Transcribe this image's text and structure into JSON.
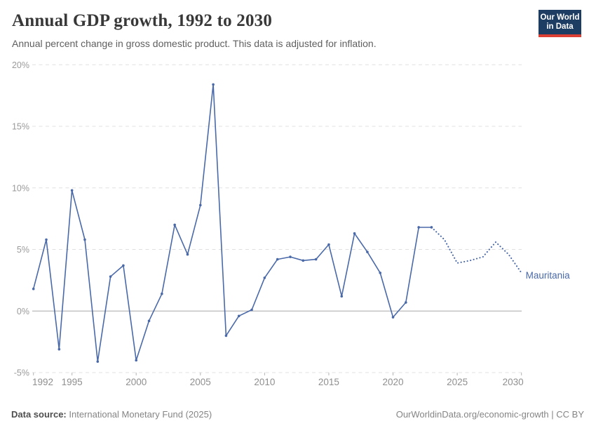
{
  "header": {
    "title": "Annual GDP growth, 1992 to 2030",
    "subtitle": "Annual percent change in gross domestic product. This data is adjusted for inflation.",
    "logo_line1": "Our World",
    "logo_line2": "in Data"
  },
  "chart_data": {
    "type": "line",
    "title": "Annual GDP growth, 1992 to 2030",
    "entity_label": "Mauritania",
    "x": [
      1992,
      1993,
      1994,
      1995,
      1996,
      1997,
      1998,
      1999,
      2000,
      2001,
      2002,
      2003,
      2004,
      2005,
      2006,
      2007,
      2008,
      2009,
      2010,
      2011,
      2012,
      2013,
      2014,
      2015,
      2016,
      2017,
      2018,
      2019,
      2020,
      2021,
      2022,
      2023,
      2024,
      2025,
      2026,
      2027,
      2028,
      2029,
      2030
    ],
    "series": [
      {
        "name": "Mauritania",
        "values": [
          1.8,
          5.8,
          -3.1,
          9.8,
          5.8,
          -4.1,
          2.8,
          3.7,
          -4.0,
          -0.8,
          1.4,
          7.0,
          4.6,
          8.6,
          18.4,
          -2.0,
          -0.4,
          0.1,
          2.7,
          4.2,
          4.4,
          4.1,
          4.2,
          5.4,
          1.2,
          6.3,
          4.8,
          3.1,
          -0.5,
          0.7,
          6.8,
          6.8,
          5.8,
          3.9,
          4.1,
          4.4,
          5.6,
          4.6,
          3.1
        ],
        "projection_from_x": 2023
      }
    ],
    "xlabel": "",
    "ylabel": "",
    "ylim": [
      -5,
      20
    ],
    "xlim": [
      1992,
      2030
    ],
    "yticks": [
      20,
      15,
      10,
      5,
      0,
      -5
    ],
    "ytick_suffix": "%",
    "xticks": [
      1992,
      1995,
      2000,
      2005,
      2010,
      2015,
      2020,
      2025,
      2030
    ],
    "grid": true,
    "legend_position": "end-of-line"
  },
  "footer": {
    "source_label": "Data source:",
    "source_value": "International Monetary Fund (2025)",
    "rights": "OurWorldinData.org/economic-growth | CC BY"
  },
  "colors": {
    "accent": "#4a69a8",
    "grid": "#e0e0e0",
    "zero_line": "#a8a8a8",
    "tick_text": "#9a9a9a",
    "logo_bg": "#1d3d63",
    "logo_red": "#dc3f34"
  }
}
